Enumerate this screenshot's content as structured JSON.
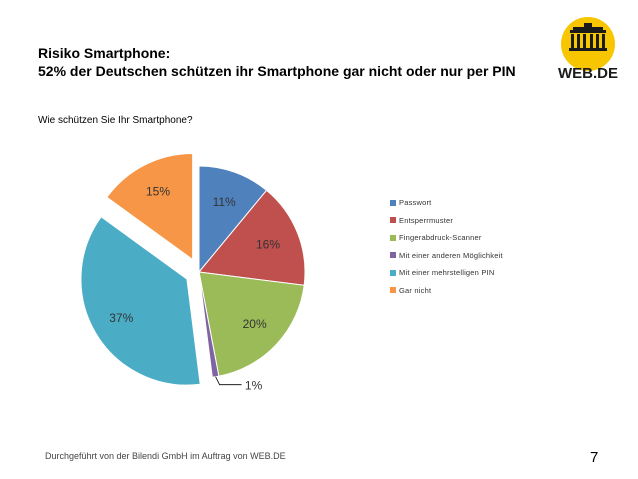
{
  "header": {
    "title_line1": "Risiko Smartphone:",
    "title_line2": "52% der Deutschen schützen ihr Smartphone gar nicht oder nur per PIN",
    "subtitle": "Wie schützen Sie Ihr Smartphone?"
  },
  "logo": {
    "text": "WEB.DE",
    "accent": "#F7C600"
  },
  "footer": {
    "text": "Durchgeführt von der Bilendi GmbH im Auftrag von WEB.DE",
    "page_number": "7"
  },
  "chart_data": {
    "type": "pie",
    "title": "Wie schützen Sie Ihr Smartphone?",
    "legend_position": "right",
    "slices": [
      {
        "label": "Passwort",
        "value": 11,
        "display": "11%",
        "color": "#4F81BD",
        "exploded": false
      },
      {
        "label": "Entsperrmuster",
        "value": 16,
        "display": "16%",
        "color": "#C0504D",
        "exploded": false
      },
      {
        "label": "Fingerabdruck-Scanner",
        "value": 20,
        "display": "20%",
        "color": "#9BBB59",
        "exploded": false
      },
      {
        "label": "Mit einer anderen Möglichkeit",
        "value": 1,
        "display": "1%",
        "color": "#8064A2",
        "exploded": false
      },
      {
        "label": "Mit einer mehrstelligen PIN",
        "value": 37,
        "display": "37%",
        "color": "#4BACC6",
        "exploded": true
      },
      {
        "label": "Gar nicht",
        "value": 15,
        "display": "15%",
        "color": "#F79646",
        "exploded": true
      }
    ]
  }
}
